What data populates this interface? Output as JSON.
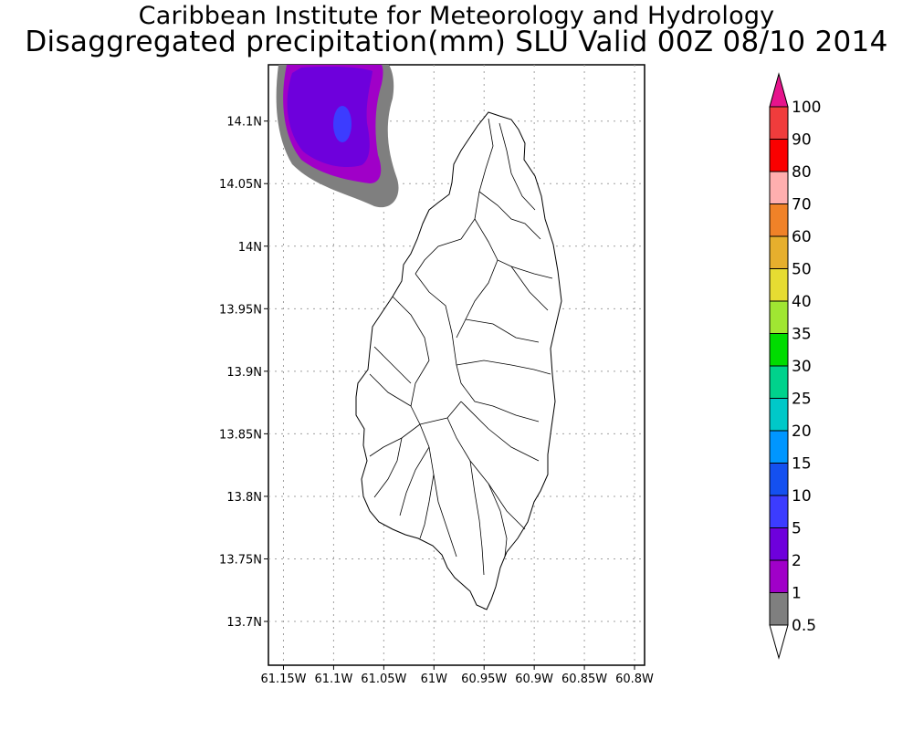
{
  "title_line1": "Caribbean Institute for Meteorology and Hydrology",
  "title_line2": "Disaggregated precipitation(mm) SLU Valid 00Z 08/10 2014",
  "map": {
    "lat_labels": [
      "14.1N",
      "14.05N",
      "14N",
      "13.95N",
      "13.9N",
      "13.85N",
      "13.8N",
      "13.75N",
      "13.7N"
    ],
    "lon_labels": [
      "61.15W",
      "61.1W",
      "61.05W",
      "61W",
      "60.95W",
      "60.9W",
      "60.85W",
      "60.8W"
    ],
    "lat_values": [
      14.1,
      14.05,
      14.0,
      13.95,
      13.9,
      13.85,
      13.8,
      13.75,
      13.7
    ],
    "lon_values": [
      -61.15,
      -61.1,
      -61.05,
      -61.0,
      -60.95,
      -60.9,
      -60.85,
      -60.8
    ],
    "lat_range": [
      13.665,
      14.145
    ],
    "lon_range": [
      -61.165,
      -60.79
    ]
  },
  "colorbar": {
    "levels": [
      "0.5",
      "1",
      "2",
      "5",
      "10",
      "15",
      "20",
      "25",
      "30",
      "35",
      "40",
      "50",
      "60",
      "70",
      "80",
      "90",
      "100"
    ],
    "colors": [
      "#7f7f7f",
      "#a000c8",
      "#6e00dc",
      "#3c3cff",
      "#1450f0",
      "#0096ff",
      "#00c8c8",
      "#00d28c",
      "#00dc00",
      "#a0e632",
      "#e6dc32",
      "#e6af2d",
      "#f08228",
      "#ffafaf",
      "#fa0000",
      "#f03c3c",
      "#e6148c"
    ],
    "under_color": "#ffffff"
  },
  "colors": {
    "grid": "#a0a0a0",
    "coast": "#000000",
    "catchment": "#000000"
  }
}
